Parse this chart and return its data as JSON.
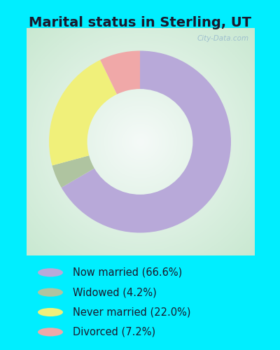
{
  "title": "Marital status in Sterling, UT",
  "slices": [
    66.6,
    4.2,
    22.0,
    7.2
  ],
  "labels": [
    "Now married (66.6%)",
    "Widowed (4.2%)",
    "Never married (22.0%)",
    "Divorced (7.2%)"
  ],
  "colors": [
    "#b8a9d9",
    "#afc4a0",
    "#f0f07a",
    "#f0a8a8"
  ],
  "legend_colors": [
    "#b8a9d9",
    "#afc4a0",
    "#f0f07a",
    "#f0a8a8"
  ],
  "outer_bg": "#00eeff",
  "chart_bg_center": "#f5faf8",
  "chart_bg_edge": "#c8e8d0",
  "title_fontsize": 14,
  "watermark": "City-Data.com",
  "donut_width": 0.42,
  "startangle": 90
}
